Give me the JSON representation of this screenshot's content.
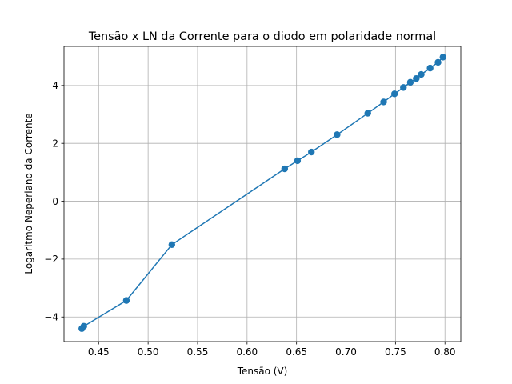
{
  "chart_data": {
    "type": "line",
    "title": "Tensão x LN da Corrente para o diodo em polaridade normal",
    "xlabel": "Tensão (V)",
    "ylabel": "Logaritmo Neperiano da Corrente",
    "xlim": [
      0.415,
      0.816
    ],
    "ylim": [
      -4.85,
      5.35
    ],
    "xticks": [
      0.45,
      0.5,
      0.55,
      0.6,
      0.65,
      0.7,
      0.75,
      0.8
    ],
    "xtick_labels": [
      "0.45",
      "0.50",
      "0.55",
      "0.60",
      "0.65",
      "0.70",
      "0.75",
      "0.80"
    ],
    "yticks": [
      -4,
      -2,
      0,
      2,
      4
    ],
    "ytick_labels": [
      "−4",
      "−2",
      "0",
      "2",
      "4"
    ],
    "grid": true,
    "marker": "circle",
    "series": [
      {
        "color": "#1f77b4",
        "x": [
          0.433,
          0.435,
          0.478,
          0.524,
          0.638,
          0.651,
          0.665,
          0.691,
          0.722,
          0.738,
          0.749,
          0.758,
          0.765,
          0.771,
          0.776,
          0.785,
          0.793,
          0.798
        ],
        "y": [
          -4.4,
          -4.32,
          -3.43,
          -1.5,
          1.12,
          1.4,
          1.7,
          2.3,
          3.04,
          3.43,
          3.71,
          3.93,
          4.11,
          4.24,
          4.38,
          4.6,
          4.8,
          4.98
        ]
      }
    ]
  }
}
